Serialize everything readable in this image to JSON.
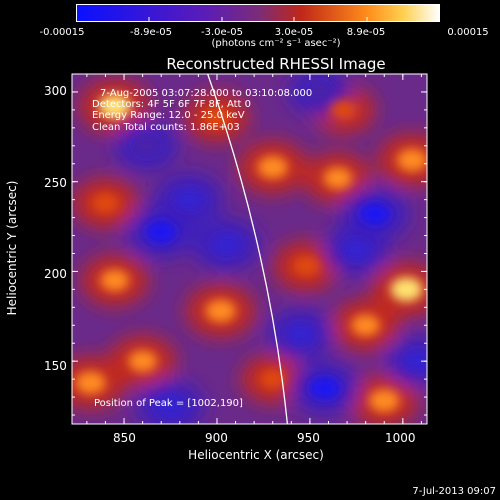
{
  "colorbar": {
    "ticks": [
      "-0.00015",
      "-8.9e-05",
      "-3.0e-05",
      "3.0e-05",
      "8.9e-05",
      "0.00015"
    ],
    "units": "(photons cm⁻² s⁻¹ asec⁻²)",
    "colors": [
      "#0a10ff",
      "#4818c8",
      "#7a2ca0",
      "#b43c28",
      "#ff7a1a",
      "#ffffff"
    ]
  },
  "chart_data": {
    "type": "heatmap",
    "title": "Reconstructed RHESSI Image",
    "xlabel": "Heliocentric X (arcsec)",
    "ylabel": "Heliocentric Y (arcsec)",
    "xlim": [
      822,
      1013
    ],
    "ylim": [
      115,
      310
    ],
    "xticks": [
      "850",
      "900",
      "950",
      "1000"
    ],
    "yticks": [
      "150",
      "200",
      "250",
      "300"
    ],
    "peak": [
      1002,
      190
    ],
    "limb_arc": [
      [
        895,
        310
      ],
      [
        938,
        115
      ]
    ],
    "blobs": [
      {
        "x": 845,
        "y": 292,
        "v": 1.0
      },
      {
        "x": 900,
        "y": 286,
        "v": 0.7
      },
      {
        "x": 968,
        "y": 290,
        "v": 0.6
      },
      {
        "x": 840,
        "y": 238,
        "v": 0.7
      },
      {
        "x": 930,
        "y": 258,
        "v": 0.9
      },
      {
        "x": 965,
        "y": 252,
        "v": 0.8
      },
      {
        "x": 1005,
        "y": 262,
        "v": 0.9
      },
      {
        "x": 845,
        "y": 195,
        "v": 0.8
      },
      {
        "x": 902,
        "y": 178,
        "v": 0.9
      },
      {
        "x": 948,
        "y": 203,
        "v": 0.7
      },
      {
        "x": 980,
        "y": 170,
        "v": 0.8
      },
      {
        "x": 1002,
        "y": 190,
        "v": 1.0
      },
      {
        "x": 832,
        "y": 138,
        "v": 0.9
      },
      {
        "x": 860,
        "y": 150,
        "v": 0.8
      },
      {
        "x": 930,
        "y": 140,
        "v": 0.6
      },
      {
        "x": 990,
        "y": 128,
        "v": 0.9
      },
      {
        "x": 870,
        "y": 222,
        "v": -0.9
      },
      {
        "x": 885,
        "y": 240,
        "v": -0.8
      },
      {
        "x": 905,
        "y": 215,
        "v": -0.8
      },
      {
        "x": 985,
        "y": 232,
        "v": -0.9
      },
      {
        "x": 975,
        "y": 212,
        "v": -0.7
      },
      {
        "x": 958,
        "y": 135,
        "v": -0.9
      },
      {
        "x": 875,
        "y": 125,
        "v": -0.8
      },
      {
        "x": 945,
        "y": 165,
        "v": -0.7
      },
      {
        "x": 862,
        "y": 270,
        "v": -0.6
      },
      {
        "x": 955,
        "y": 300,
        "v": -0.5
      },
      {
        "x": 1008,
        "y": 150,
        "v": -0.7
      }
    ]
  },
  "annotations": {
    "line1": "7-Aug-2005 03:07:28.000 to 03:10:08.000",
    "line2": "Detectors: 4F 5F 6F 7F 8F, Att 0",
    "line3": "Energy Range: 12.0 - 25.0 keV",
    "line4": "Clean     Total counts: 1.86E+03",
    "peak": "Position of Peak = [1002,190]"
  },
  "footer": "7-Jul-2013 09:07"
}
